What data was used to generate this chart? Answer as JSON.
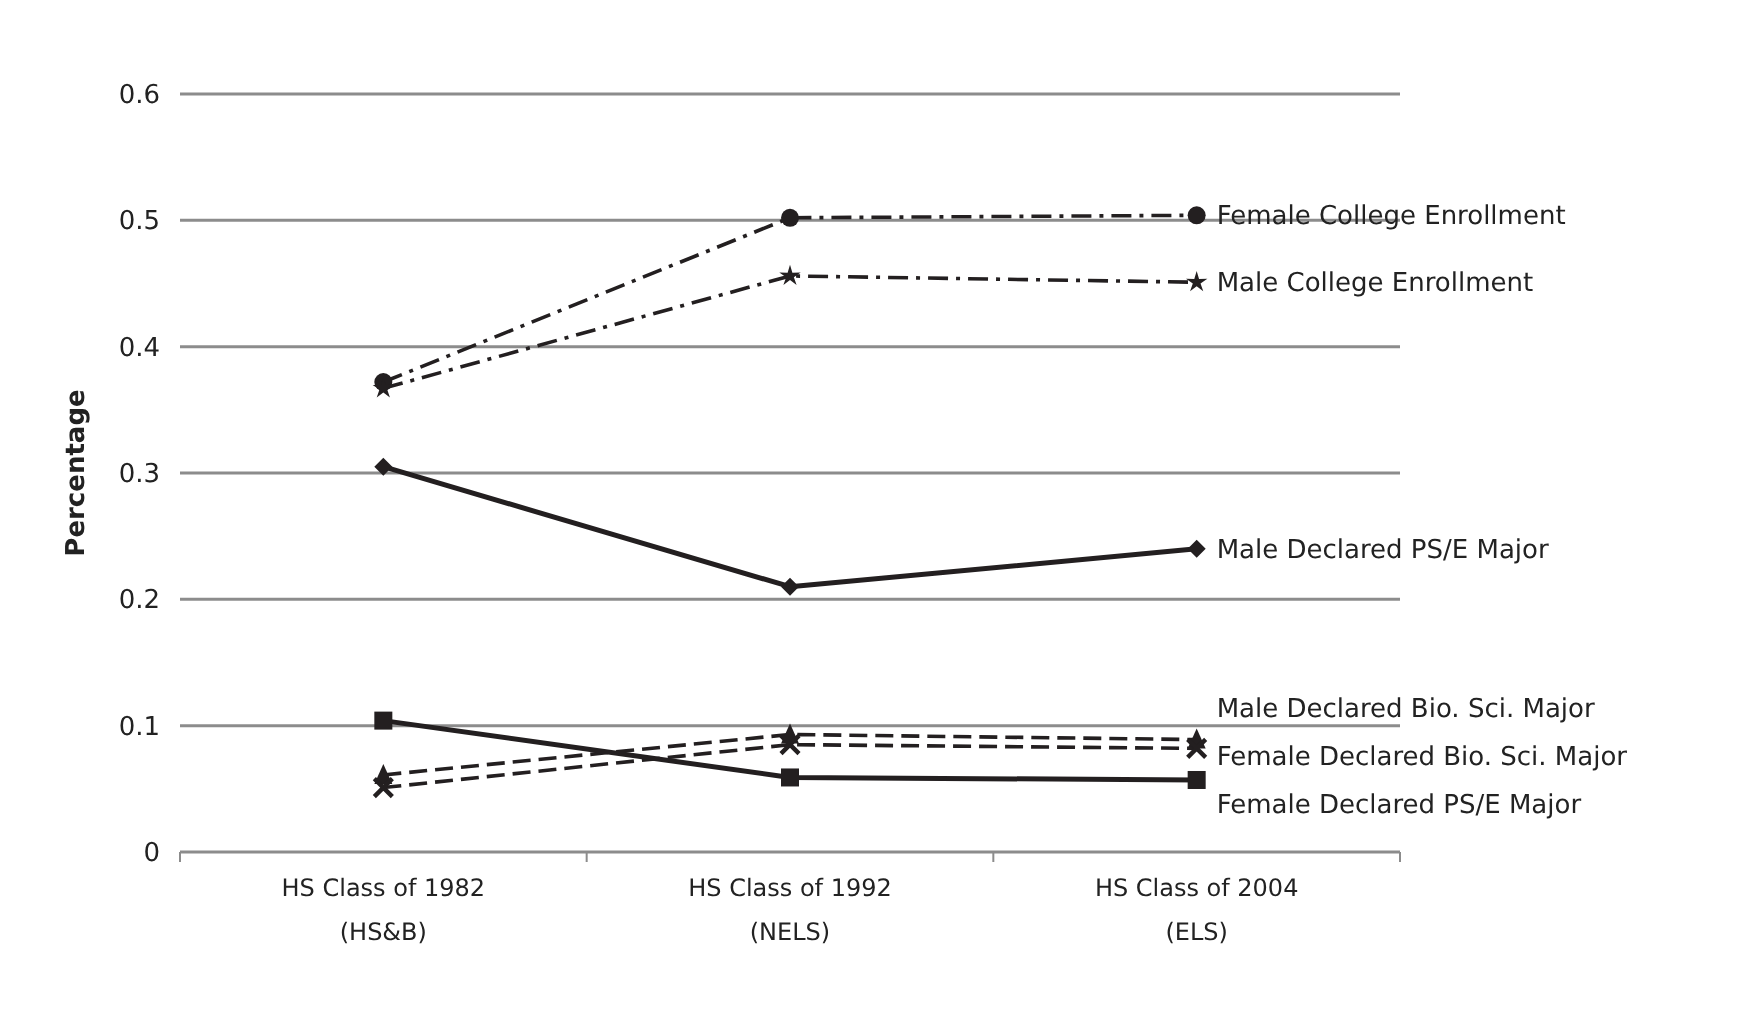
{
  "chart_data": {
    "type": "line",
    "ylabel": "Percentage",
    "categories": [
      "HS Class of 1982\n(HS&B)",
      "HS Class of 1992\n(NELS)",
      "HS Class of 2004\n(ELS)"
    ],
    "ylim": [
      0,
      0.6
    ],
    "yticks": [
      {
        "value": 0,
        "label": "0"
      },
      0.1,
      0.2,
      0.3,
      0.4,
      0.5,
      0.6
    ],
    "grid": "y",
    "series": [
      {
        "name": "Female College Enrollment",
        "color": "#231f20",
        "values": [
          0.372,
          0.502,
          0.504
        ],
        "marker": "circle",
        "line_style": "dashdot"
      },
      {
        "name": "Male College Enrollment",
        "color": "#231f20",
        "values": [
          0.367,
          0.456,
          0.451
        ],
        "marker": "star",
        "line_style": "dashdot"
      },
      {
        "name": "Male Declared PS/E Major",
        "color": "#231f20",
        "values": [
          0.305,
          0.21,
          0.24
        ],
        "marker": "diamond",
        "line_style": "solid"
      },
      {
        "name": "Male Declared Bio. Sci. Major",
        "color": "#231f20",
        "values": [
          0.061,
          0.093,
          0.089
        ],
        "marker": "triangle",
        "line_style": "dashed"
      },
      {
        "name": "Female Declared Bio. Sci. Major",
        "color": "#231f20",
        "values": [
          0.051,
          0.085,
          0.082
        ],
        "marker": "cross",
        "line_style": "dashed"
      },
      {
        "name": "Female Declared PS/E Major",
        "color": "#231f20",
        "values": [
          0.104,
          0.059,
          0.057
        ],
        "marker": "square",
        "line_style": "solid"
      }
    ]
  }
}
